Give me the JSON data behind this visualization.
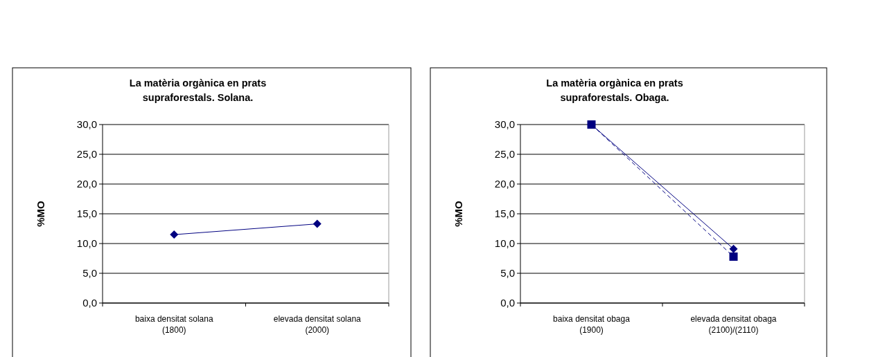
{
  "chart_data": [
    {
      "type": "line",
      "title": "La matèria orgànica en prats\nsupraforestals. Solana.",
      "ylabel": "%MO",
      "categories": [
        "baixa densitat solana\n(1800)",
        "elevada densitat solana\n(2000)"
      ],
      "series": [
        {
          "color": "#000080",
          "values": [
            11.5,
            13.3
          ],
          "marker": "diamond",
          "line_style": "solid"
        }
      ],
      "ylim": [
        0,
        30
      ],
      "yticks": [
        {
          "value": 0,
          "label": "0,0"
        },
        {
          "value": 5,
          "label": "5,0"
        },
        {
          "value": 10,
          "label": "10,0"
        },
        {
          "value": 15,
          "label": "15,0"
        },
        {
          "value": 20,
          "label": "20,0"
        },
        {
          "value": 25,
          "label": "25,0"
        },
        {
          "value": 30,
          "label": "30,0"
        }
      ],
      "grid": "y"
    },
    {
      "type": "line",
      "title": "La matèria orgànica en prats\nsupraforestals. Obaga.",
      "ylabel": "%MO",
      "categories": [
        "baixa densitat obaga\n(1900)",
        "elevada densitat obaga\n(2100)/(2110)"
      ],
      "series": [
        {
          "color": "#000080",
          "values": [
            30,
            9.1
          ],
          "marker": "diamond",
          "line_style": "solid"
        },
        {
          "color": "#000080",
          "values": [
            30,
            7.8
          ],
          "marker": "square",
          "line_style": "dashed"
        }
      ],
      "ylim": [
        0,
        30
      ],
      "yticks": [
        {
          "value": 0,
          "label": "0,0"
        },
        {
          "value": 5,
          "label": "5,0"
        },
        {
          "value": 10,
          "label": "10,0"
        },
        {
          "value": 15,
          "label": "15,0"
        },
        {
          "value": 20,
          "label": "20,0"
        },
        {
          "value": 25,
          "label": "25,0"
        },
        {
          "value": 30,
          "label": "30,0"
        }
      ],
      "grid": "y"
    }
  ]
}
